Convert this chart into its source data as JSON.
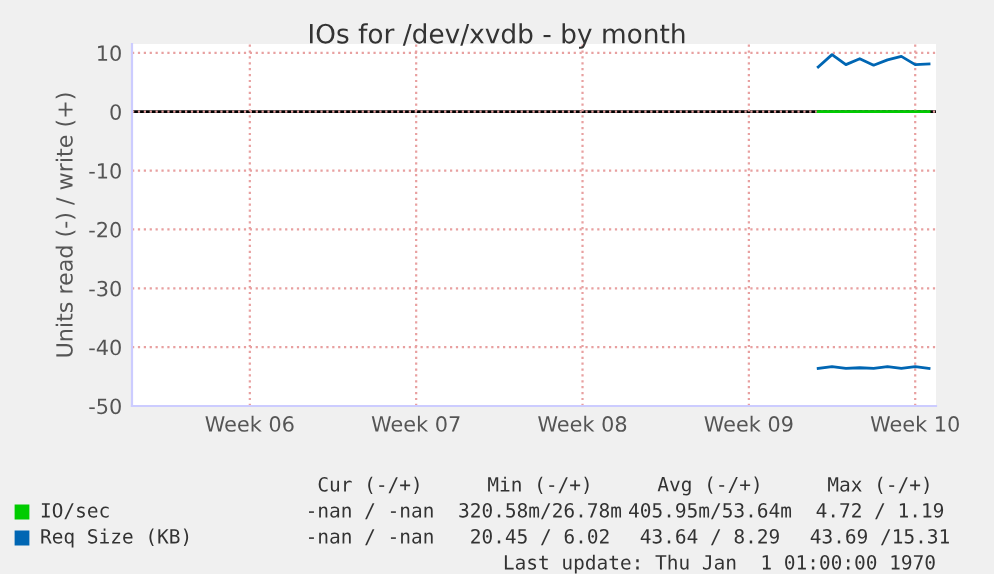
{
  "chart_data": {
    "type": "line",
    "title": "IOs for /dev/xvdb - by month",
    "ylabel": "Units read (-) / write (+)",
    "categories": [
      null,
      null,
      null,
      null,
      null,
      null,
      null,
      null,
      "Week 06",
      null,
      null,
      null,
      null,
      null,
      null,
      null,
      null,
      null,
      null,
      null,
      "Week 07",
      null,
      null,
      null,
      null,
      null,
      null,
      null,
      null,
      null,
      null,
      null,
      "Week 08",
      null,
      null,
      null,
      null,
      null,
      null,
      null,
      null,
      null,
      null,
      null,
      "Week 09",
      null,
      null,
      null,
      null,
      null,
      null,
      null,
      null,
      null,
      null,
      null,
      "Week 10",
      null
    ],
    "series": [
      {
        "name": "IO/sec",
        "color": "#00cc00",
        "values": [
          null,
          null,
          null,
          null,
          null,
          null,
          null,
          null,
          null,
          null,
          null,
          null,
          null,
          null,
          null,
          null,
          null,
          null,
          null,
          null,
          null,
          null,
          null,
          null,
          null,
          null,
          null,
          null,
          null,
          null,
          null,
          null,
          null,
          null,
          null,
          null,
          null,
          null,
          null,
          null,
          null,
          null,
          null,
          null,
          null,
          null,
          null,
          null,
          null,
          0,
          0,
          0,
          0,
          0,
          0,
          0,
          0,
          0
        ]
      },
      {
        "name": "Req Size (KB)",
        "color": "#0066b3",
        "values": [
          null,
          null,
          null,
          null,
          null,
          null,
          null,
          null,
          null,
          null,
          null,
          null,
          null,
          null,
          null,
          null,
          null,
          null,
          null,
          null,
          null,
          null,
          null,
          null,
          null,
          null,
          null,
          null,
          null,
          null,
          null,
          null,
          null,
          null,
          null,
          null,
          null,
          null,
          null,
          null,
          null,
          null,
          null,
          null,
          null,
          null,
          null,
          null,
          null,
          7.6,
          9.7,
          8.0,
          9.0,
          7.9,
          8.8,
          9.4,
          8.0,
          8.1
        ]
      },
      {
        "color": "#0066b3",
        "values": [
          null,
          null,
          null,
          null,
          null,
          null,
          null,
          null,
          null,
          null,
          null,
          null,
          null,
          null,
          null,
          null,
          null,
          null,
          null,
          null,
          null,
          null,
          null,
          null,
          null,
          null,
          null,
          null,
          null,
          null,
          null,
          null,
          null,
          null,
          null,
          null,
          null,
          null,
          null,
          null,
          null,
          null,
          null,
          null,
          null,
          null,
          null,
          null,
          null,
          -43.6,
          -43.3,
          -43.6,
          -43.5,
          -43.6,
          -43.3,
          -43.6,
          -43.3,
          -43.6
        ]
      }
    ],
    "ylim": [
      -50,
      11.5
    ],
    "yticks": [
      10,
      0,
      -10,
      -20,
      -30,
      -40,
      -50
    ],
    "ref_lines": [
      {
        "axis": "y",
        "value": 0,
        "color": "#000000"
      }
    ],
    "grid": true,
    "legend": "bottom left",
    "annotations": [
      "Cur (-/+)",
      "Min (-/+)",
      "Avg (-/+)",
      "Max (-/+)",
      "-nan / -nan",
      "320.58m/26.78m",
      "405.95m/53.64m",
      "4.72 / 1.19",
      "-nan / -nan",
      "20.45 / 6.02",
      "43.64 / 8.29",
      "43.69 /15.31",
      "Last update: Thu Jan  1 01:00:00 1970"
    ]
  }
}
